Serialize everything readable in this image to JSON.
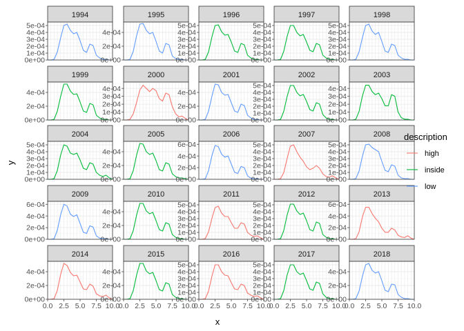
{
  "chart_data": {
    "type": "line",
    "facet_by": "year",
    "facet_layout": {
      "columns": 5,
      "rows": 5
    },
    "scales": "free_y",
    "xlabel": "x",
    "ylabel": "y",
    "xlim": [
      0,
      10
    ],
    "x_ticks": [
      0,
      2.5,
      5,
      7.5,
      10
    ],
    "x_tick_labels": [
      "0.0",
      "2.5",
      "5.0",
      "7.5",
      "10.0"
    ],
    "legend": {
      "title": "description",
      "position": "right",
      "entries": [
        {
          "name": "high",
          "color": "#F8766D"
        },
        {
          "name": "inside",
          "color": "#00BA38"
        },
        {
          "name": "low",
          "color": "#619CFF"
        }
      ]
    },
    "grid": true,
    "theme": "bw",
    "x_grid": [
      0.5,
      1.0,
      1.5,
      2.0,
      2.5,
      3.0,
      3.5,
      4.0,
      4.5,
      5.0,
      5.5,
      6.0,
      6.5,
      7.0,
      7.5,
      8.0,
      8.5,
      9.0,
      9.5,
      10.0
    ],
    "facets": [
      {
        "year": "1994",
        "description": "low",
        "y_max": 0.00055,
        "y_ticks": [
          0,
          0.0001,
          0.0002,
          0.0003,
          0.0004,
          0.0005
        ],
        "y_tick_labels": [
          "0e+00",
          "1e-04",
          "2e-04",
          "3e-04",
          "4e-04",
          "5e-04"
        ],
        "density": [
          0,
          0,
          1e-05,
          0.00012,
          0.00032,
          0.0005,
          0.00052,
          0.00043,
          0.00038,
          0.0004,
          0.00028,
          0.00014,
          0.00011,
          0.00023,
          0.00021,
          7e-05,
          3e-05,
          1e-05,
          1e-05,
          0,
          0
        ]
      },
      {
        "year": "1995",
        "description": "low",
        "y_max": 0.00055,
        "y_ticks": [
          0,
          0.0002,
          0.0004
        ],
        "y_tick_labels": [
          "0e+00",
          "2e-04",
          "4e-04"
        ],
        "density": [
          0,
          0,
          1e-05,
          0.00013,
          0.00035,
          0.00052,
          0.00053,
          0.00043,
          0.00038,
          0.0004,
          0.00027,
          0.00013,
          0.0001,
          0.00024,
          0.00022,
          6e-05,
          2e-05,
          1e-05,
          1e-05,
          0,
          0
        ]
      },
      {
        "year": "1996",
        "description": "inside",
        "y_max": 0.00055,
        "y_ticks": [
          0,
          0.0001,
          0.0002,
          0.0003,
          0.0004,
          0.0005
        ],
        "y_tick_labels": [
          "0e+00",
          "1e-04",
          "2e-04",
          "3e-04",
          "4e-04",
          "5e-04"
        ],
        "density": [
          0,
          0,
          1e-05,
          0.00012,
          0.00033,
          0.0005,
          0.00051,
          0.00041,
          0.00036,
          0.00037,
          0.00026,
          0.00013,
          0.00011,
          0.00024,
          0.00022,
          7e-05,
          3e-05,
          1e-05,
          1e-05,
          0,
          0
        ]
      },
      {
        "year": "1997",
        "description": "inside",
        "y_max": 0.00055,
        "y_ticks": [
          0,
          0.0001,
          0.0002,
          0.0003,
          0.0004,
          0.0005
        ],
        "y_tick_labels": [
          "0e+00",
          "1e-04",
          "2e-04",
          "3e-04",
          "4e-04",
          "5e-04"
        ],
        "density": [
          0,
          0,
          1e-05,
          0.00013,
          0.00034,
          0.0005,
          0.0005,
          0.0004,
          0.00035,
          0.00037,
          0.00026,
          0.00014,
          0.00012,
          0.00024,
          0.00022,
          7e-05,
          3e-05,
          1e-05,
          1e-05,
          0,
          0
        ]
      },
      {
        "year": "1998",
        "description": "low",
        "y_max": 0.00055,
        "y_ticks": [
          0,
          0.0001,
          0.0002,
          0.0003,
          0.0004,
          0.0005
        ],
        "y_tick_labels": [
          "0e+00",
          "1e-04",
          "2e-04",
          "3e-04",
          "4e-04",
          "5e-04"
        ],
        "density": [
          0,
          0,
          1e-05,
          0.00012,
          0.00032,
          0.0005,
          0.00052,
          0.00042,
          0.00037,
          0.0004,
          0.00027,
          0.00013,
          0.00011,
          0.00023,
          0.00021,
          7e-05,
          3e-05,
          1e-05,
          1e-05,
          0,
          0
        ]
      },
      {
        "year": "1999",
        "description": "inside",
        "y_max": 0.00055,
        "y_ticks": [
          0,
          0.0002,
          0.0004
        ],
        "y_tick_labels": [
          "0e+00",
          "2e-04",
          "4e-04"
        ],
        "density": [
          0,
          0,
          1e-05,
          0.00013,
          0.00034,
          0.00052,
          0.00052,
          0.00042,
          0.00037,
          0.00038,
          0.00026,
          0.00013,
          0.00011,
          0.00024,
          0.00022,
          7e-05,
          3e-05,
          1e-05,
          1e-05,
          0,
          0
        ]
      },
      {
        "year": "2000",
        "description": "high",
        "y_max": 0.00048,
        "y_ticks": [
          0,
          0.0001,
          0.0002,
          0.0003,
          0.0004
        ],
        "y_tick_labels": [
          "0e+00",
          "1e-04",
          "2e-04",
          "3e-04",
          "4e-04"
        ],
        "density": [
          0,
          0,
          1e-05,
          8e-05,
          0.00022,
          0.00038,
          0.00044,
          0.0004,
          0.00036,
          0.0004,
          0.00037,
          0.00027,
          0.00024,
          0.00034,
          0.00032,
          0.00017,
          8e-05,
          4e-05,
          5e-05,
          2e-05,
          0
        ]
      },
      {
        "year": "2001",
        "description": "low",
        "y_max": 0.00055,
        "y_ticks": [
          0,
          0.0002,
          0.0004
        ],
        "y_tick_labels": [
          "0e+00",
          "2e-04",
          "4e-04"
        ],
        "density": [
          0,
          0,
          1e-05,
          0.00013,
          0.00034,
          0.00052,
          0.00051,
          0.0004,
          0.00036,
          0.00037,
          0.00025,
          0.00013,
          0.00011,
          0.00023,
          0.00021,
          7e-05,
          3e-05,
          1e-05,
          1e-05,
          0,
          0
        ]
      },
      {
        "year": "2002",
        "description": "inside",
        "y_max": 0.00055,
        "y_ticks": [
          0,
          0.0001,
          0.0002,
          0.0003,
          0.0004,
          0.0005
        ],
        "y_tick_labels": [
          "0e+00",
          "1e-04",
          "2e-04",
          "3e-04",
          "4e-04",
          "5e-04"
        ],
        "density": [
          0,
          0,
          1e-05,
          0.00013,
          0.00034,
          0.0005,
          0.0005,
          0.0004,
          0.00035,
          0.00037,
          0.00027,
          0.00015,
          0.00013,
          0.00025,
          0.00023,
          8e-05,
          3e-05,
          1e-05,
          1e-05,
          0,
          0
        ]
      },
      {
        "year": "2003",
        "description": "inside",
        "y_max": 0.00048,
        "y_ticks": [
          0,
          0.0001,
          0.0002,
          0.0003,
          0.0004
        ],
        "y_tick_labels": [
          "0e+00",
          "1e-04",
          "2e-04",
          "3e-04",
          "4e-04"
        ],
        "density": [
          0,
          0,
          1e-05,
          0.00011,
          0.0003,
          0.00044,
          0.00044,
          0.00036,
          0.00032,
          0.00034,
          0.00027,
          0.00018,
          0.00018,
          0.00032,
          0.0003,
          0.0001,
          3e-05,
          1e-05,
          1e-05,
          0,
          0
        ]
      },
      {
        "year": "2004",
        "description": "inside",
        "y_max": 0.00055,
        "y_ticks": [
          0,
          0.0001,
          0.0002,
          0.0003,
          0.0004,
          0.0005
        ],
        "y_tick_labels": [
          "0e+00",
          "1e-04",
          "2e-04",
          "3e-04",
          "4e-04",
          "5e-04"
        ],
        "density": [
          0,
          0,
          1e-05,
          0.00013,
          0.00035,
          0.0005,
          0.00048,
          0.00038,
          0.00036,
          0.00038,
          0.00028,
          0.00016,
          0.00014,
          0.00024,
          0.00022,
          0.0001,
          6e-05,
          4e-05,
          6e-05,
          2e-05,
          0
        ]
      },
      {
        "year": "2005",
        "description": "inside",
        "y_max": 0.00055,
        "y_ticks": [
          0,
          0.0002,
          0.0004
        ],
        "y_tick_labels": [
          "0e+00",
          "2e-04",
          "4e-04"
        ],
        "density": [
          0,
          0,
          1e-05,
          0.00013,
          0.00035,
          0.00052,
          0.00051,
          0.0004,
          0.00036,
          0.00038,
          0.00027,
          0.00014,
          0.00012,
          0.00024,
          0.00022,
          8e-05,
          4e-05,
          2e-05,
          2e-05,
          1e-05,
          0
        ]
      },
      {
        "year": "2006",
        "description": "low",
        "y_max": 0.00065,
        "y_ticks": [
          0,
          0.0002,
          0.0004,
          0.0006
        ],
        "y_tick_labels": [
          "0e+00",
          "2e-04",
          "4e-04",
          "6e-04"
        ],
        "density": [
          0,
          0,
          1e-05,
          0.00015,
          0.0004,
          0.00058,
          0.00056,
          0.00043,
          0.00038,
          0.0004,
          0.00026,
          0.00012,
          0.0001,
          0.00022,
          0.0002,
          6e-05,
          2e-05,
          1e-05,
          1e-05,
          0,
          0
        ]
      },
      {
        "year": "2007",
        "description": "high",
        "y_max": 0.00055,
        "y_ticks": [
          0,
          0.0001,
          0.0002,
          0.0003,
          0.0004,
          0.0005
        ],
        "y_tick_labels": [
          "0e+00",
          "1e-04",
          "2e-04",
          "3e-04",
          "4e-04",
          "5e-04"
        ],
        "density": [
          0,
          0,
          1e-05,
          0.0001,
          0.0003,
          0.00048,
          0.0005,
          0.0004,
          0.00032,
          0.00026,
          0.00018,
          0.00014,
          0.00016,
          0.0002,
          0.00016,
          8e-05,
          4e-05,
          3e-05,
          5e-05,
          2e-05,
          0
        ]
      },
      {
        "year": "2008",
        "description": "low",
        "y_max": 0.00055,
        "y_ticks": [
          0,
          0.0001,
          0.0002,
          0.0003,
          0.0004,
          0.0005
        ],
        "y_tick_labels": [
          "0e+00",
          "1e-04",
          "2e-04",
          "3e-04",
          "4e-04",
          "5e-04"
        ],
        "density": [
          0,
          0,
          1e-05,
          0.00012,
          0.00033,
          0.0005,
          0.00051,
          0.00046,
          0.00043,
          0.0004,
          0.00026,
          0.00013,
          0.00011,
          0.00021,
          0.00019,
          6e-05,
          2e-05,
          1e-05,
          1e-05,
          0,
          0
        ]
      },
      {
        "year": "2009",
        "description": "low",
        "y_max": 0.00065,
        "y_ticks": [
          0,
          0.0002,
          0.0004,
          0.0006
        ],
        "y_tick_labels": [
          "0e+00",
          "2e-04",
          "4e-04",
          "6e-04"
        ],
        "density": [
          0,
          0,
          1e-05,
          0.00016,
          0.00042,
          0.0006,
          0.00057,
          0.00043,
          0.00039,
          0.00042,
          0.00027,
          0.00012,
          0.0001,
          0.00023,
          0.00021,
          6e-05,
          2e-05,
          1e-05,
          1e-05,
          0,
          0
        ]
      },
      {
        "year": "2010",
        "description": "inside",
        "y_max": 0.00055,
        "y_ticks": [
          0,
          0.0002,
          0.0004
        ],
        "y_tick_labels": [
          "0e+00",
          "2e-04",
          "4e-04"
        ],
        "density": [
          0,
          0,
          1e-05,
          0.00013,
          0.00035,
          0.00052,
          0.00052,
          0.00041,
          0.00037,
          0.00039,
          0.00027,
          0.00014,
          0.00012,
          0.00024,
          0.00022,
          7e-05,
          3e-05,
          1e-05,
          1e-05,
          0,
          0
        ]
      },
      {
        "year": "2011",
        "description": "high",
        "y_max": 0.00055,
        "y_ticks": [
          0,
          0.0001,
          0.0002,
          0.0003,
          0.0004,
          0.0005
        ],
        "y_tick_labels": [
          "0e+00",
          "1e-04",
          "2e-04",
          "3e-04",
          "4e-04",
          "5e-04"
        ],
        "density": [
          0,
          0,
          1e-05,
          0.00011,
          0.0003,
          0.00046,
          0.00048,
          0.00038,
          0.00033,
          0.00033,
          0.00024,
          0.00016,
          0.00016,
          0.00024,
          0.00022,
          0.0001,
          6e-05,
          4e-05,
          5e-05,
          2e-05,
          0
        ]
      },
      {
        "year": "2012",
        "description": "inside",
        "y_max": 0.00055,
        "y_ticks": [
          0,
          0.0001,
          0.0002,
          0.0003,
          0.0004,
          0.0005
        ],
        "y_tick_labels": [
          "0e+00",
          "1e-04",
          "2e-04",
          "3e-04",
          "4e-04",
          "5e-04"
        ],
        "density": [
          0,
          0,
          1e-05,
          0.00013,
          0.00035,
          0.00051,
          0.00051,
          0.00041,
          0.00036,
          0.00038,
          0.00027,
          0.00014,
          0.00012,
          0.00025,
          0.00023,
          7e-05,
          3e-05,
          1e-05,
          1e-05,
          0,
          0
        ]
      },
      {
        "year": "2013",
        "description": "high",
        "y_max": 0.00065,
        "y_ticks": [
          0,
          0.0002,
          0.0004,
          0.0006
        ],
        "y_tick_labels": [
          "0e+00",
          "2e-04",
          "4e-04",
          "6e-04"
        ],
        "density": [
          0,
          0,
          1e-05,
          0.00013,
          0.00038,
          0.00055,
          0.00055,
          0.00044,
          0.00036,
          0.0003,
          0.00019,
          0.00012,
          0.00012,
          0.00019,
          0.00016,
          7e-05,
          4e-05,
          3e-05,
          6e-05,
          2e-05,
          0
        ]
      },
      {
        "year": "2014",
        "description": "high",
        "y_max": 0.00055,
        "y_ticks": [
          0,
          0.0002,
          0.0004
        ],
        "y_tick_labels": [
          "0e+00",
          "2e-04",
          "4e-04"
        ],
        "density": [
          0,
          0,
          1e-05,
          0.00013,
          0.00036,
          0.00052,
          0.00049,
          0.00039,
          0.00034,
          0.00035,
          0.00025,
          0.00015,
          0.00014,
          0.00022,
          0.00019,
          8e-05,
          5e-05,
          4e-05,
          6e-05,
          2e-05,
          0
        ]
      },
      {
        "year": "2015",
        "description": "inside",
        "y_max": 0.00055,
        "y_ticks": [
          0,
          0.0002,
          0.0004
        ],
        "y_tick_labels": [
          "0e+00",
          "2e-04",
          "4e-04"
        ],
        "density": [
          0,
          0,
          1e-05,
          0.00013,
          0.00035,
          0.00052,
          0.00052,
          0.00041,
          0.00037,
          0.00039,
          0.00027,
          0.00014,
          0.00012,
          0.00024,
          0.00022,
          7e-05,
          3e-05,
          1e-05,
          1e-05,
          0,
          0
        ]
      },
      {
        "year": "2016",
        "description": "high",
        "y_max": 0.00055,
        "y_ticks": [
          0,
          0.0001,
          0.0002,
          0.0003,
          0.0004,
          0.0005
        ],
        "y_tick_labels": [
          "0e+00",
          "1e-04",
          "2e-04",
          "3e-04",
          "4e-04",
          "5e-04"
        ],
        "density": [
          0,
          0,
          1e-05,
          0.00012,
          0.00033,
          0.0005,
          0.0005,
          0.0004,
          0.00035,
          0.00034,
          0.00024,
          0.00015,
          0.00014,
          0.00022,
          0.0002,
          9e-05,
          6e-05,
          4e-05,
          5e-05,
          2e-05,
          0
        ]
      },
      {
        "year": "2017",
        "description": "inside",
        "y_max": 0.00055,
        "y_ticks": [
          0,
          0.0001,
          0.0002,
          0.0003,
          0.0004,
          0.0005
        ],
        "y_tick_labels": [
          "0e+00",
          "1e-04",
          "2e-04",
          "3e-04",
          "4e-04",
          "5e-04"
        ],
        "density": [
          0,
          0,
          1e-05,
          0.00013,
          0.00035,
          0.0005,
          0.0005,
          0.0004,
          0.00036,
          0.00038,
          0.00027,
          0.00015,
          0.00013,
          0.00025,
          0.00023,
          8e-05,
          3e-05,
          1e-05,
          1e-05,
          0,
          0
        ]
      },
      {
        "year": "2018",
        "description": "low",
        "y_max": 0.00055,
        "y_ticks": [
          0,
          0.0002,
          0.0004
        ],
        "y_tick_labels": [
          "0e+00",
          "2e-04",
          "4e-04"
        ],
        "density": [
          0,
          0,
          1e-05,
          0.00012,
          0.00033,
          0.0005,
          0.00052,
          0.00042,
          0.00038,
          0.0004,
          0.00027,
          0.00013,
          0.00011,
          0.00022,
          0.00021,
          7e-05,
          3e-05,
          1e-05,
          1e-05,
          0,
          0
        ]
      }
    ],
    "density_x": [
      0,
      0.5,
      1.0,
      1.5,
      2.0,
      2.5,
      3.0,
      3.5,
      4.0,
      4.5,
      5.0,
      5.5,
      6.0,
      6.5,
      7.0,
      7.5,
      8.0,
      8.5,
      9.0,
      9.5,
      10.0
    ]
  },
  "colors": {
    "panel_border": "#333333",
    "strip_fill": "#d9d9d9",
    "grid_major": "#ebebeb",
    "grid_minor": "#f5f5f5",
    "tick": "#333333"
  }
}
